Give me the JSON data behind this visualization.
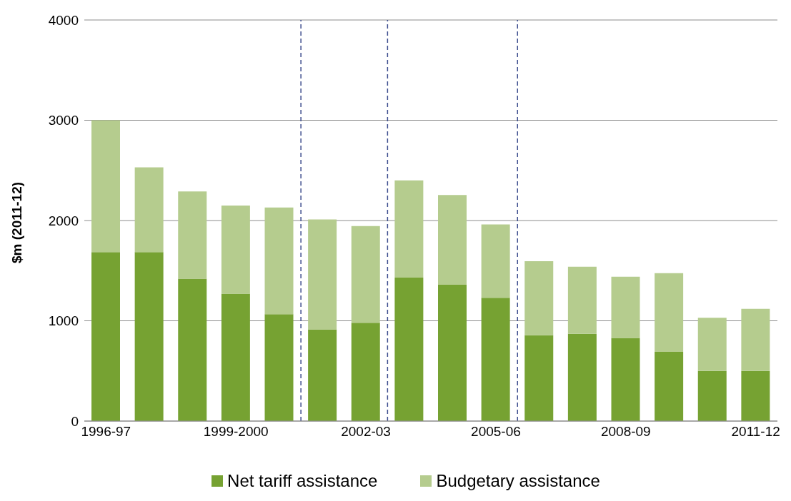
{
  "chart_data": {
    "type": "bar",
    "stacked": true,
    "ylabel": "$m (2011-12)",
    "categories": [
      "1996-97",
      null,
      null,
      "1999-2000",
      null,
      null,
      "2002-03",
      null,
      null,
      "2005-06",
      null,
      null,
      "2008-09",
      null,
      null,
      "2011-12"
    ],
    "series": [
      {
        "name": "Net tariff assistance",
        "color": "#76a232",
        "values": [
          1685,
          1685,
          1420,
          1270,
          1065,
          915,
          980,
          1430,
          1360,
          1230,
          855,
          870,
          830,
          690,
          500,
          500
        ]
      },
      {
        "name": "Budgetary assistance",
        "color": "#b5cc8e",
        "values": [
          1315,
          845,
          870,
          880,
          1065,
          1095,
          965,
          970,
          895,
          730,
          740,
          670,
          610,
          785,
          530,
          620
        ]
      }
    ],
    "ylim": [
      0,
      4000
    ],
    "yticks": [
      0,
      1000,
      2000,
      3000,
      4000
    ],
    "grid": "y",
    "legend": "bottom"
  }
}
